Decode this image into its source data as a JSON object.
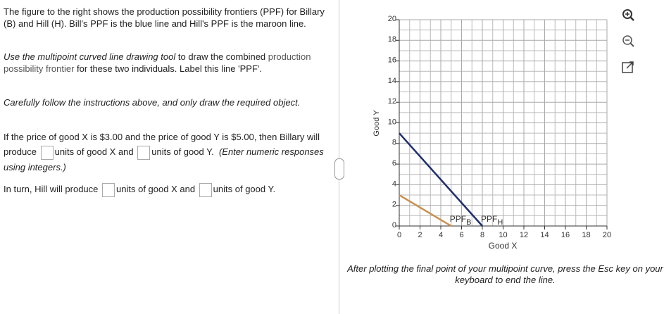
{
  "instructions": {
    "intro": "The figure to the right shows the production possibility frontiers (PPF) for Billary (B) and Hill (H).  Bill's PPF is the blue line and Hill's PPF is the maroon line.",
    "task": [
      "Use the multipoint curved line drawing tool",
      " to draw the combined ",
      "production possibility frontier",
      " for these two individuals. Label this line 'PPF'."
    ],
    "caution": "Carefully follow the instructions above, and only draw the required object."
  },
  "questions": [
    {
      "parts": [
        "If the price of good X is $3.00 and the price of good Y is $5.00, then Billary will produce",
        "units of good X and",
        "units of good Y.",
        "(Enter numeric responses using integers.)"
      ]
    },
    {
      "parts": [
        "In turn, Hill will produce",
        "units of good X and",
        "units of good Y."
      ]
    }
  ],
  "chart_data": {
    "type": "line",
    "x_label": "Good X",
    "y_label": "Good Y",
    "xlim": [
      0,
      20
    ],
    "ylim": [
      0,
      20
    ],
    "xticks": [
      0,
      2,
      4,
      6,
      8,
      10,
      12,
      14,
      16,
      18,
      20
    ],
    "yticks": [
      0,
      2,
      4,
      6,
      8,
      10,
      12,
      14,
      16,
      18,
      20
    ],
    "grid": true,
    "series": [
      {
        "name": "PPF",
        "subscript": "B",
        "color": "#c8914e",
        "x": [
          0,
          5
        ],
        "values": [
          3,
          0
        ]
      },
      {
        "name": "PPF",
        "subscript": "H",
        "color": "#1f2f6e",
        "x": [
          0,
          8
        ],
        "values": [
          9,
          0
        ]
      }
    ]
  },
  "footer": "After plotting the final point of your multipoint curve, press the Esc key on your keyboard to end the line."
}
